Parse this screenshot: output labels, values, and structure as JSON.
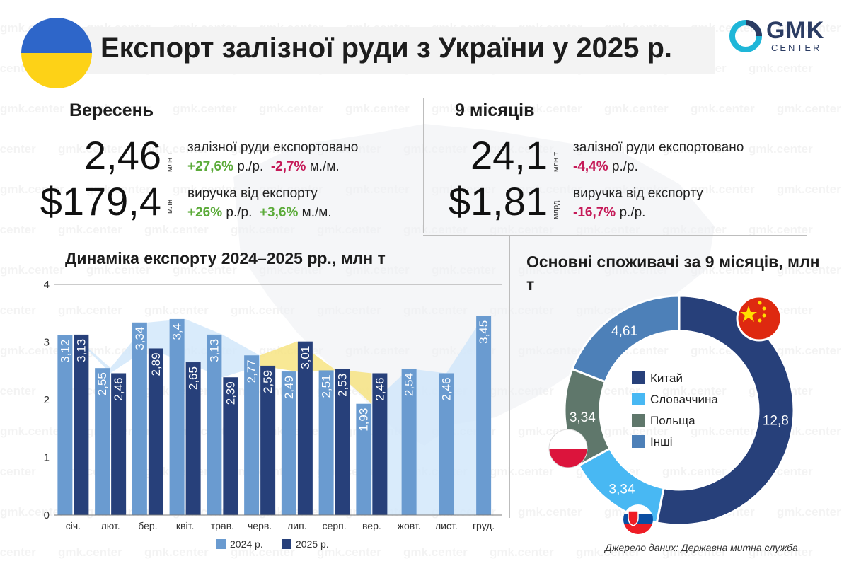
{
  "header": {
    "title": "Експорт залізної руди з України у 2025 р.",
    "logo_main": "GMK",
    "logo_sub": "CENTER",
    "watermark": "gmk.center"
  },
  "colors": {
    "flag_blue": "#2e66c9",
    "flag_yellow": "#fdd217",
    "bar_2024": "#6a9bd0",
    "bar_2025": "#27407a",
    "positive": "#5cab3a",
    "negative": "#c51a58",
    "area_yellow": "#f6e27a",
    "area_blue": "#cfe6fa"
  },
  "september": {
    "heading": "Вересень",
    "ore_value": "2,46",
    "ore_unit": "млн т",
    "ore_label": "залізної руди експортовано",
    "ore_yoy": "+27,6%",
    "ore_yoy_suffix": "р./р.",
    "ore_mom": "-2,7%",
    "ore_mom_suffix": "м./м.",
    "rev_value": "$179,4",
    "rev_unit": "млн",
    "rev_label": "виручка від експорту",
    "rev_yoy": "+26%",
    "rev_yoy_suffix": "р./р.",
    "rev_mom": "+3,6%",
    "rev_mom_suffix": "м./м."
  },
  "nine_months": {
    "heading": "9 місяців",
    "ore_value": "24,1",
    "ore_unit": "млн т",
    "ore_label": "залізної руди експортовано",
    "ore_yoy": "-4,4%",
    "ore_yoy_suffix": "р./р.",
    "rev_value": "$1,81",
    "rev_unit": "млрд",
    "rev_label": "виручка від експорту",
    "rev_yoy": "-16,7%",
    "rev_yoy_suffix": "р./р."
  },
  "bar_section": {
    "title": "Динаміка експорту 2024–2025 рр., млн т"
  },
  "donut_section": {
    "title": "Основні споживачі за 9 місяців, млн т"
  },
  "source": "Джерело даних: Державна митна служба",
  "chart_data": [
    {
      "type": "bar",
      "ylim": [
        0,
        4
      ],
      "yticks": [
        0,
        1,
        2,
        3,
        4
      ],
      "categories": [
        "січ.",
        "лют.",
        "бер.",
        "квіт.",
        "трав.",
        "черв.",
        "лип.",
        "серп.",
        "вер.",
        "жовт.",
        "лист.",
        "груд."
      ],
      "series": [
        {
          "name": "2024 р.",
          "color": "#6a9bd0",
          "values": [
            3.12,
            2.55,
            3.34,
            3.4,
            3.13,
            2.77,
            2.49,
            2.51,
            1.93,
            2.54,
            2.46,
            3.45
          ],
          "labels": [
            "3,12",
            "2,55",
            "3,34",
            "3,4",
            "3,13",
            "2,77",
            "2,49",
            "2,51",
            "1,93",
            "2,54",
            "2,46",
            "3,45"
          ]
        },
        {
          "name": "2025 р.",
          "color": "#27407a",
          "values": [
            3.13,
            2.46,
            2.89,
            2.65,
            2.39,
            2.59,
            3.01,
            2.53,
            2.46,
            null,
            null,
            null
          ],
          "labels": [
            "3,13",
            "2,46",
            "2,89",
            "2,65",
            "2,39",
            "2,59",
            "3,01",
            "2,53",
            "2,46",
            "",
            "",
            ""
          ]
        }
      ],
      "grid": false,
      "legend": "bottom"
    },
    {
      "type": "pie",
      "donut": true,
      "categories": [
        "Китай",
        "Словаччина",
        "Польща",
        "Інші"
      ],
      "values": [
        12.8,
        3.34,
        3.34,
        4.61
      ],
      "labels": [
        "12,8",
        "3,34",
        "3,34",
        "4,61"
      ],
      "colors": [
        "#27407a",
        "#48b8f3",
        "#5f776b",
        "#4d80b8"
      ],
      "legend": "center"
    }
  ]
}
